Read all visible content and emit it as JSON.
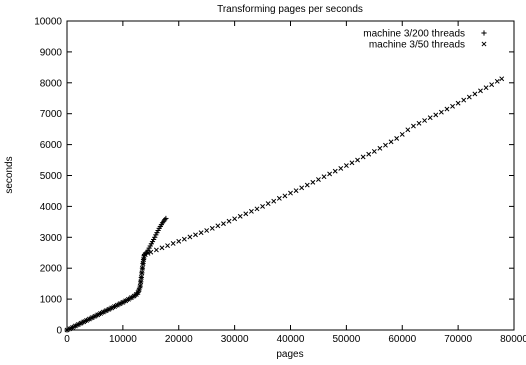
{
  "chart_data": {
    "type": "scatter",
    "title": "Transforming pages per seconds",
    "xlabel": "pages",
    "ylabel": "seconds",
    "xlim": [
      0,
      80000
    ],
    "ylim": [
      0,
      10000
    ],
    "xticks": [
      "0",
      "10000",
      "20000",
      "30000",
      "40000",
      "50000",
      "60000",
      "70000",
      "80000"
    ],
    "yticks": [
      "0",
      "1000",
      "2000",
      "3000",
      "4000",
      "5000",
      "6000",
      "7000",
      "8000",
      "9000",
      "10000"
    ],
    "grid": false,
    "legend_position": "top-right",
    "series": [
      {
        "name": "machine 3/200 threads",
        "marker": "+",
        "color": "#000000",
        "points": [
          [
            0,
            0
          ],
          [
            500,
            40
          ],
          [
            1000,
            85
          ],
          [
            1500,
            130
          ],
          [
            2000,
            175
          ],
          [
            2500,
            220
          ],
          [
            3000,
            265
          ],
          [
            3500,
            310
          ],
          [
            4000,
            355
          ],
          [
            4500,
            400
          ],
          [
            5000,
            445
          ],
          [
            5500,
            490
          ],
          [
            6000,
            535
          ],
          [
            6500,
            580
          ],
          [
            7000,
            625
          ],
          [
            7500,
            670
          ],
          [
            8000,
            715
          ],
          [
            8500,
            760
          ],
          [
            9000,
            805
          ],
          [
            9500,
            850
          ],
          [
            10000,
            895
          ],
          [
            10500,
            945
          ],
          [
            11000,
            995
          ],
          [
            11500,
            1045
          ],
          [
            12000,
            1100
          ],
          [
            12400,
            1150
          ],
          [
            12700,
            1210
          ],
          [
            12900,
            1300
          ],
          [
            13100,
            1420
          ],
          [
            13200,
            1560
          ],
          [
            13300,
            1700
          ],
          [
            13400,
            1850
          ],
          [
            13500,
            2000
          ],
          [
            13600,
            2150
          ],
          [
            13700,
            2280
          ],
          [
            13800,
            2400
          ],
          [
            13900,
            2450
          ],
          [
            14100,
            2480
          ],
          [
            14300,
            2520
          ],
          [
            14500,
            2580
          ],
          [
            14700,
            2650
          ],
          [
            14900,
            2720
          ],
          [
            15100,
            2790
          ],
          [
            15300,
            2860
          ],
          [
            15500,
            2930
          ],
          [
            15700,
            3000
          ],
          [
            15900,
            3080
          ],
          [
            16100,
            3150
          ],
          [
            16300,
            3220
          ],
          [
            16500,
            3290
          ],
          [
            16700,
            3350
          ],
          [
            16900,
            3410
          ],
          [
            17100,
            3470
          ],
          [
            17300,
            3520
          ],
          [
            17500,
            3570
          ],
          [
            17700,
            3610
          ]
        ]
      },
      {
        "name": "machine 3/50 threads",
        "marker": "x",
        "color": "#000000",
        "points": [
          [
            0,
            0
          ],
          [
            500,
            40
          ],
          [
            1000,
            85
          ],
          [
            1500,
            130
          ],
          [
            2000,
            175
          ],
          [
            2500,
            220
          ],
          [
            3000,
            265
          ],
          [
            3500,
            310
          ],
          [
            4000,
            355
          ],
          [
            4500,
            400
          ],
          [
            5000,
            445
          ],
          [
            5500,
            490
          ],
          [
            6000,
            535
          ],
          [
            6500,
            580
          ],
          [
            7000,
            625
          ],
          [
            7500,
            670
          ],
          [
            8000,
            715
          ],
          [
            8500,
            760
          ],
          [
            9000,
            805
          ],
          [
            9500,
            850
          ],
          [
            10000,
            895
          ],
          [
            10500,
            945
          ],
          [
            11000,
            995
          ],
          [
            11500,
            1045
          ],
          [
            12000,
            1100
          ],
          [
            12400,
            1150
          ],
          [
            12700,
            1210
          ],
          [
            12900,
            1300
          ],
          [
            13100,
            1420
          ],
          [
            13200,
            1560
          ],
          [
            13300,
            1700
          ],
          [
            13400,
            1850
          ],
          [
            13500,
            2000
          ],
          [
            13600,
            2150
          ],
          [
            13700,
            2280
          ],
          [
            13800,
            2380
          ],
          [
            14000,
            2440
          ],
          [
            14500,
            2480
          ],
          [
            15000,
            2520
          ],
          [
            16000,
            2590
          ],
          [
            17000,
            2660
          ],
          [
            18000,
            2730
          ],
          [
            19000,
            2800
          ],
          [
            20000,
            2870
          ],
          [
            21000,
            2940
          ],
          [
            22000,
            3010
          ],
          [
            23000,
            3080
          ],
          [
            24000,
            3150
          ],
          [
            25000,
            3220
          ],
          [
            26000,
            3290
          ],
          [
            27000,
            3370
          ],
          [
            28000,
            3440
          ],
          [
            29000,
            3520
          ],
          [
            30000,
            3600
          ],
          [
            31000,
            3680
          ],
          [
            32000,
            3760
          ],
          [
            33000,
            3840
          ],
          [
            34000,
            3920
          ],
          [
            35000,
            4000
          ],
          [
            36000,
            4090
          ],
          [
            37000,
            4170
          ],
          [
            38000,
            4260
          ],
          [
            39000,
            4340
          ],
          [
            40000,
            4430
          ],
          [
            41000,
            4510
          ],
          [
            42000,
            4600
          ],
          [
            43000,
            4690
          ],
          [
            44000,
            4780
          ],
          [
            45000,
            4870
          ],
          [
            46000,
            4960
          ],
          [
            47000,
            5050
          ],
          [
            48000,
            5140
          ],
          [
            49000,
            5230
          ],
          [
            50000,
            5320
          ],
          [
            51000,
            5410
          ],
          [
            52000,
            5500
          ],
          [
            53000,
            5600
          ],
          [
            54000,
            5690
          ],
          [
            55000,
            5780
          ],
          [
            56000,
            5880
          ],
          [
            57000,
            5980
          ],
          [
            58000,
            6090
          ],
          [
            59000,
            6200
          ],
          [
            60000,
            6330
          ],
          [
            61000,
            6480
          ],
          [
            62000,
            6600
          ],
          [
            63000,
            6690
          ],
          [
            64000,
            6780
          ],
          [
            65000,
            6870
          ],
          [
            66000,
            6960
          ],
          [
            67000,
            7050
          ],
          [
            68000,
            7150
          ],
          [
            69000,
            7240
          ],
          [
            70000,
            7340
          ],
          [
            71000,
            7440
          ],
          [
            72000,
            7540
          ],
          [
            73000,
            7640
          ],
          [
            74000,
            7740
          ],
          [
            75000,
            7840
          ],
          [
            76000,
            7940
          ],
          [
            77000,
            8050
          ],
          [
            77800,
            8130
          ]
        ]
      }
    ]
  }
}
